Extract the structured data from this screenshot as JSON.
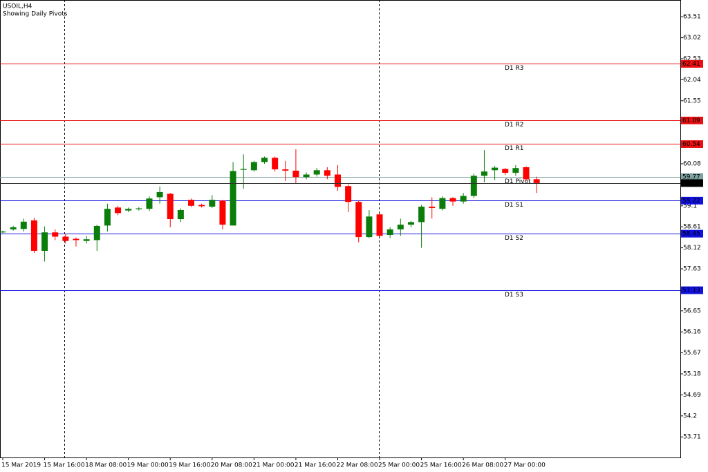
{
  "chart_data": {
    "type": "candlestick",
    "title": "USOIL,H4",
    "subtitle": "Showing Daily Pivots",
    "categories": [
      "15 Mar 2019",
      null,
      null,
      null,
      "15 Mar 16:00",
      null,
      null,
      null,
      "18 Mar 08:00",
      null,
      null,
      null,
      "19 Mar 00:00",
      null,
      null,
      null,
      "19 Mar 16:00",
      null,
      null,
      null,
      "20 Mar 08:00",
      null,
      null,
      null,
      "21 Mar 00:00",
      null,
      null,
      null,
      "21 Mar 16:00",
      null,
      null,
      null,
      "22 Mar 08:00",
      null,
      null,
      null,
      "25 Mar 00:00",
      null,
      null,
      null,
      "25 Mar 16:00",
      null,
      null,
      null,
      "26 Mar 08:00",
      null,
      null,
      null,
      "27 Mar 00:00",
      null,
      null,
      null
    ],
    "open": [
      58.48,
      58.55,
      58.56,
      58.76,
      58.05,
      58.48,
      58.38,
      58.33,
      58.28,
      58.3,
      58.64,
      59.06,
      58.99,
      59.02,
      59.03,
      59.3,
      59.38,
      58.79,
      59.24,
      59.12,
      59.08,
      59.22,
      58.64,
      59.94,
      59.93,
      60.12,
      60.22,
      59.95,
      59.92,
      59.77,
      59.83,
      59.93,
      59.83,
      59.56,
      59.19,
      58.37,
      58.9,
      58.42,
      58.55,
      58.66,
      58.72,
      59.08,
      59.03,
      59.28,
      59.2,
      59.33,
      59.8,
      59.93,
      59.96,
      59.87,
      60.0,
      59.72
    ],
    "high": [
      58.52,
      58.63,
      58.8,
      58.82,
      58.62,
      58.55,
      58.45,
      58.36,
      58.4,
      58.66,
      59.15,
      59.1,
      59.06,
      59.07,
      59.32,
      59.55,
      59.4,
      59.04,
      59.27,
      59.15,
      59.35,
      59.24,
      60.12,
      60.3,
      60.15,
      60.25,
      60.25,
      60.15,
      60.42,
      59.88,
      59.98,
      60.0,
      60.05,
      59.6,
      59.23,
      59.0,
      58.92,
      58.6,
      58.8,
      58.75,
      59.12,
      59.3,
      59.32,
      59.3,
      59.4,
      59.85,
      60.4,
      60.03,
      59.98,
      60.05,
      60.02,
      59.78
    ],
    "low": [
      58.46,
      58.52,
      58.5,
      58.0,
      57.8,
      58.3,
      58.22,
      58.15,
      58.22,
      58.05,
      58.5,
      58.88,
      58.95,
      58.99,
      58.98,
      59.15,
      58.6,
      58.72,
      59.07,
      59.06,
      59.05,
      58.55,
      58.64,
      59.5,
      59.9,
      60.08,
      59.9,
      59.68,
      59.62,
      59.72,
      59.78,
      59.72,
      59.45,
      58.95,
      58.25,
      58.35,
      58.38,
      58.35,
      58.4,
      58.6,
      58.12,
      58.8,
      58.99,
      59.1,
      59.15,
      59.28,
      59.65,
      59.7,
      59.82,
      59.8,
      59.68,
      59.4
    ],
    "close": [
      58.5,
      58.6,
      58.73,
      58.05,
      58.48,
      58.38,
      58.28,
      58.3,
      58.32,
      58.63,
      59.03,
      58.93,
      59.03,
      59.04,
      59.27,
      59.42,
      58.79,
      59.0,
      59.1,
      59.09,
      59.24,
      58.66,
      59.91,
      59.96,
      60.12,
      60.22,
      59.95,
      59.92,
      59.77,
      59.83,
      59.93,
      59.8,
      59.54,
      59.19,
      58.37,
      58.85,
      58.4,
      58.55,
      58.66,
      58.72,
      59.08,
      59.05,
      59.28,
      59.2,
      59.33,
      59.8,
      59.9,
      59.99,
      59.87,
      59.98,
      59.72,
      59.63
    ],
    "up_color": "#0a7d0a",
    "down_color": "#ff0000",
    "ylim": [
      53.23,
      63.9
    ],
    "yticks": [
      63.51,
      63.02,
      62.53,
      62.04,
      61.55,
      60.08,
      59.1,
      58.61,
      58.12,
      57.63,
      56.65,
      56.16,
      55.67,
      55.18,
      54.69,
      54.2,
      53.71
    ],
    "levels": [
      {
        "name": "D1 R3",
        "value": 62.41,
        "color": "#e81010"
      },
      {
        "name": "D1 R2",
        "value": 61.09,
        "color": "#e81010"
      },
      {
        "name": "D1 R1",
        "value": 60.54,
        "color": "#e81010"
      },
      {
        "name": "D1 Pivot",
        "value": 59.77,
        "color": "#7fa3a3"
      },
      {
        "name": "D1 S1",
        "value": 59.22,
        "color": "#1010e0"
      },
      {
        "name": "D1 S2",
        "value": 58.45,
        "color": "#1010e0"
      },
      {
        "name": "D1 S3",
        "value": 57.13,
        "color": "#1010e0"
      }
    ],
    "current_price": 59.63
  }
}
